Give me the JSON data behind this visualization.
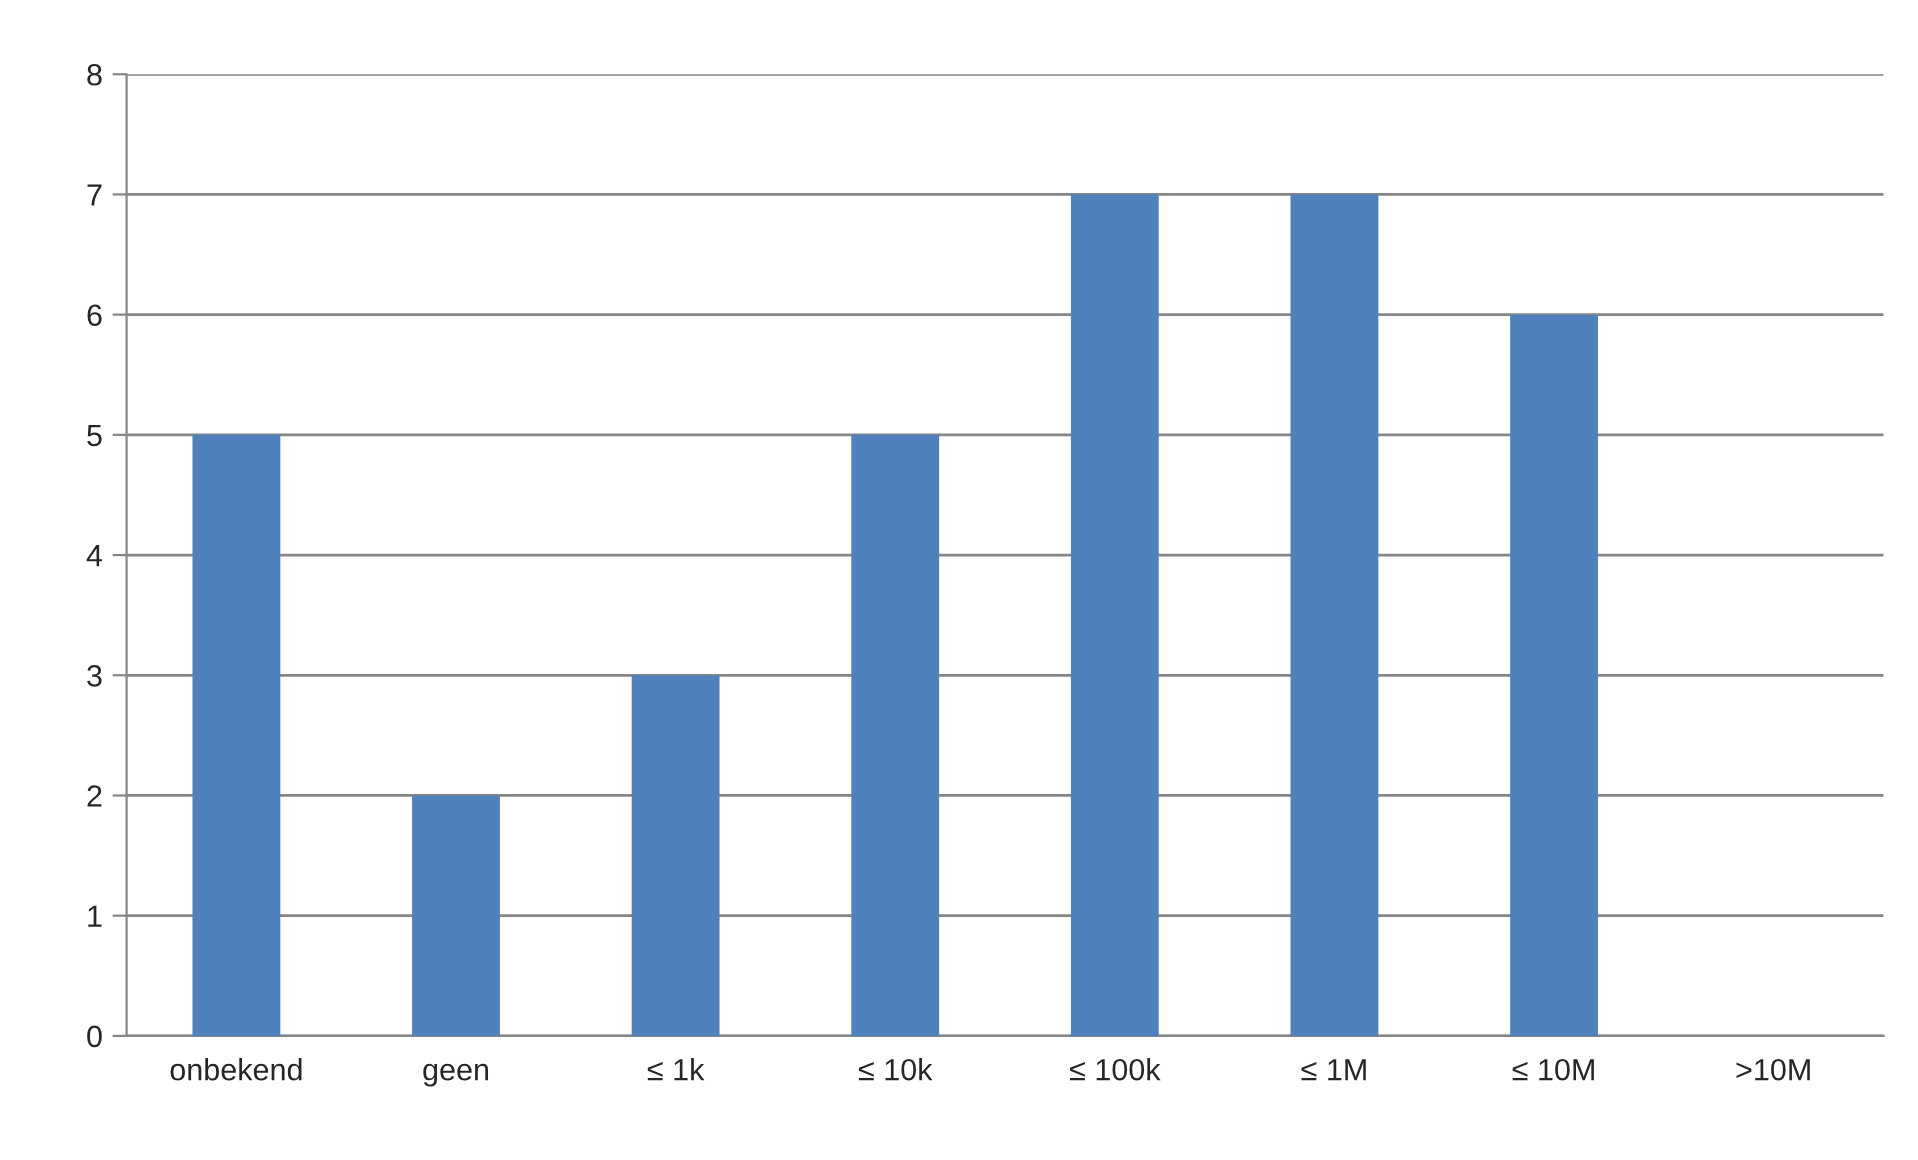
{
  "chart_data": {
    "type": "bar",
    "categories": [
      "onbekend",
      "geen",
      "≤ 1k",
      "≤ 10k",
      "≤ 100k",
      "≤ 1M",
      "≤ 10M",
      ">10M"
    ],
    "values": [
      5,
      2,
      3,
      5,
      7,
      7,
      6,
      null
    ],
    "color": "#4f81bd",
    "ylim": [
      0,
      8
    ],
    "yticks": [
      0,
      1,
      2,
      3,
      4,
      5,
      6,
      7,
      8
    ],
    "grid": "y"
  }
}
